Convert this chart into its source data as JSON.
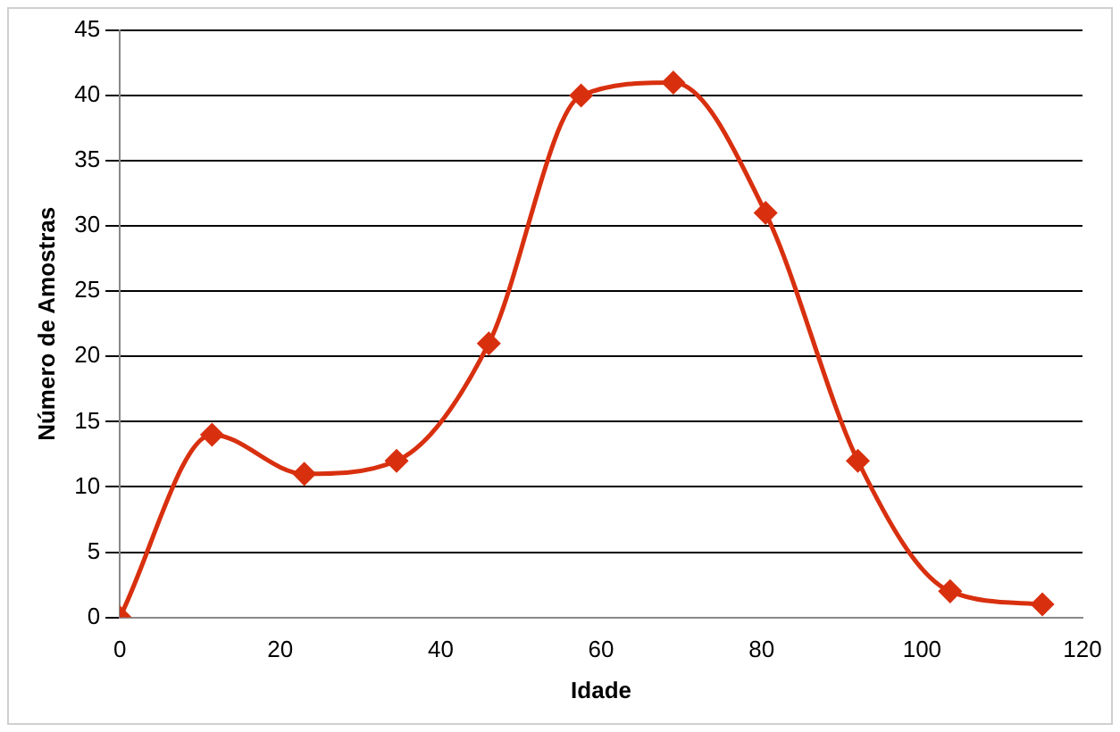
{
  "chart_data": {
    "type": "line",
    "xlabel": "Idade",
    "ylabel": "Número de Amostras",
    "xlim": [
      0,
      120
    ],
    "xticks": [
      0,
      20,
      40,
      60,
      80,
      100,
      120
    ],
    "ylim": [
      0,
      45
    ],
    "yticks": [
      0,
      5,
      10,
      15,
      20,
      25,
      30,
      35,
      40,
      45
    ],
    "grid": "y",
    "legend": false,
    "marker": "diamond",
    "series": [
      {
        "color": "#d8300f",
        "x": [
          0,
          11.5,
          23,
          34.5,
          46,
          57.5,
          69,
          80.5,
          92,
          103.5,
          115
        ],
        "values": [
          0,
          14,
          11,
          12,
          21,
          40,
          41,
          31,
          12,
          2,
          1
        ]
      }
    ]
  }
}
